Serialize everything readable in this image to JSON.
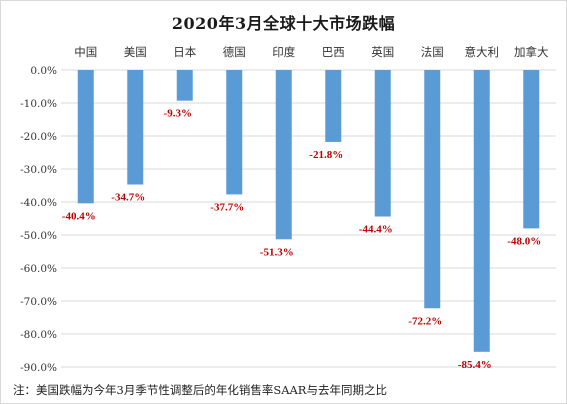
{
  "colors": {
    "bar": "#5b9bd5",
    "data_label": "#c00000",
    "gridline": "#d9d9d9",
    "axis_text": "#333333"
  },
  "chart_data": {
    "type": "bar",
    "title": "2020年3月全球十大市场跌幅",
    "xlabel": "",
    "ylabel": "",
    "categories": [
      "中国",
      "美国",
      "日本",
      "德国",
      "印度",
      "巴西",
      "英国",
      "法国",
      "意大利",
      "加拿大"
    ],
    "values": [
      -40.4,
      -34.7,
      -9.3,
      -37.7,
      -51.3,
      -21.8,
      -44.4,
      -72.2,
      -85.4,
      -48.0
    ],
    "value_labels": [
      "-40.4%",
      "-34.7%",
      "-9.3%",
      "-37.7%",
      "-51.3%",
      "-21.8%",
      "-44.4%",
      "-72.2%",
      "-85.4%",
      "-48.0%"
    ],
    "ylim": [
      -90,
      0
    ],
    "yticks": [
      0,
      -10,
      -20,
      -30,
      -40,
      -50,
      -60,
      -70,
      -80,
      -90
    ],
    "ytick_labels": [
      "0.0%",
      "-10.0%",
      "-20.0%",
      "-30.0%",
      "-40.0%",
      "-50.0%",
      "-60.0%",
      "-70.0%",
      "-80.0%",
      "-90.0%"
    ],
    "category_axis_position": "top",
    "grid": true,
    "legend": "none"
  },
  "footnote": "注：美国跌幅为今年3月季节性调整后的年化销售率SAAR与去年同期之比"
}
